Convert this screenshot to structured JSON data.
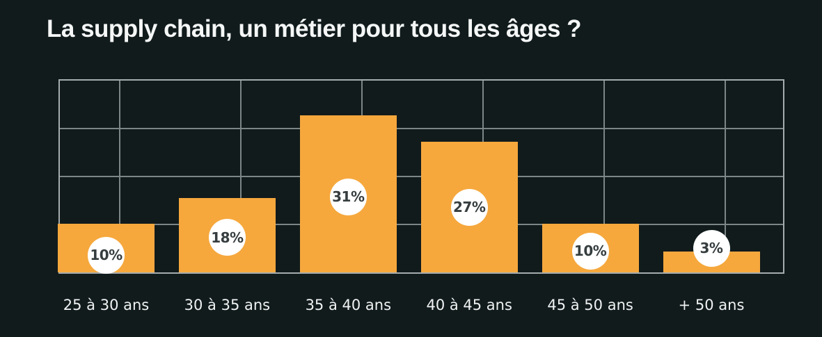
{
  "title": "La supply chain, un métier pour tous les âges ?",
  "colors": {
    "background": "#111b1c",
    "bar": "#f6a83d",
    "grid_border": "#a6acad",
    "grid_line": "#7c8687",
    "badge_background": "#ffffff",
    "badge_text": "#363d3f",
    "axis_label_text": "#f0f2f2",
    "title_text": "#f5f7f7"
  },
  "chart_data": {
    "type": "bar",
    "title": "La supply chain, un métier pour tous les âges ?",
    "categories": [
      "25 à 30 ans",
      "30 à 35 ans",
      "35 à 40 ans",
      "40 à 45 ans",
      "45 à 50 ans",
      "+ 50 ans"
    ],
    "values": [
      10,
      18,
      31,
      27,
      10,
      3
    ],
    "value_labels": [
      "10%",
      "18%",
      "31%",
      "27%",
      "10%",
      "3%"
    ],
    "unit": "%",
    "xlabel": "",
    "ylabel": "",
    "ylim": [
      0,
      40
    ],
    "grid_rows": 4,
    "grid": true,
    "legend": false,
    "y_axis_labels_visible": false
  }
}
